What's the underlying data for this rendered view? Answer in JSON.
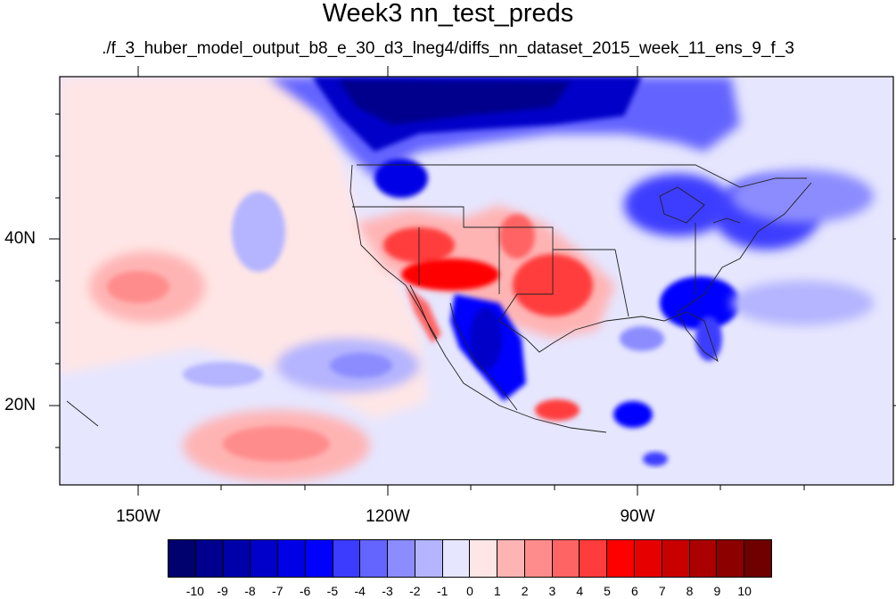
{
  "title": "Week3 nn_test_preds",
  "subtitle": "./f_3_huber_model_output_b8_e_30_d3_lneg4/diffs_nn_dataset_2015_week_11_ens_9_f_3",
  "lat_labels": [
    "40N",
    "20N"
  ],
  "lon_labels": [
    "150W",
    "120W",
    "90W"
  ],
  "colorbar": {
    "labels": [
      "-10",
      "-9",
      "-8",
      "-7",
      "-6",
      "-5",
      "-4",
      "-3",
      "-2",
      "-1",
      "0",
      "1",
      "2",
      "3",
      "4",
      "5",
      "6",
      "7",
      "8",
      "9",
      "10"
    ],
    "colors": [
      "#00006e",
      "#00008c",
      "#0000aa",
      "#0000c8",
      "#0000e6",
      "#0000ff",
      "#3c3cff",
      "#6464ff",
      "#8c8cff",
      "#b4b4ff",
      "#e6e6ff",
      "#ffe6e6",
      "#ffb4b4",
      "#ff8c8c",
      "#ff6464",
      "#ff3c3c",
      "#ff0000",
      "#e60000",
      "#c80000",
      "#aa0000",
      "#8c0000",
      "#6e0000"
    ]
  },
  "palette": {
    "neutral_blue": "#e6e6ff",
    "neutral_red": "#ffe6e6"
  }
}
